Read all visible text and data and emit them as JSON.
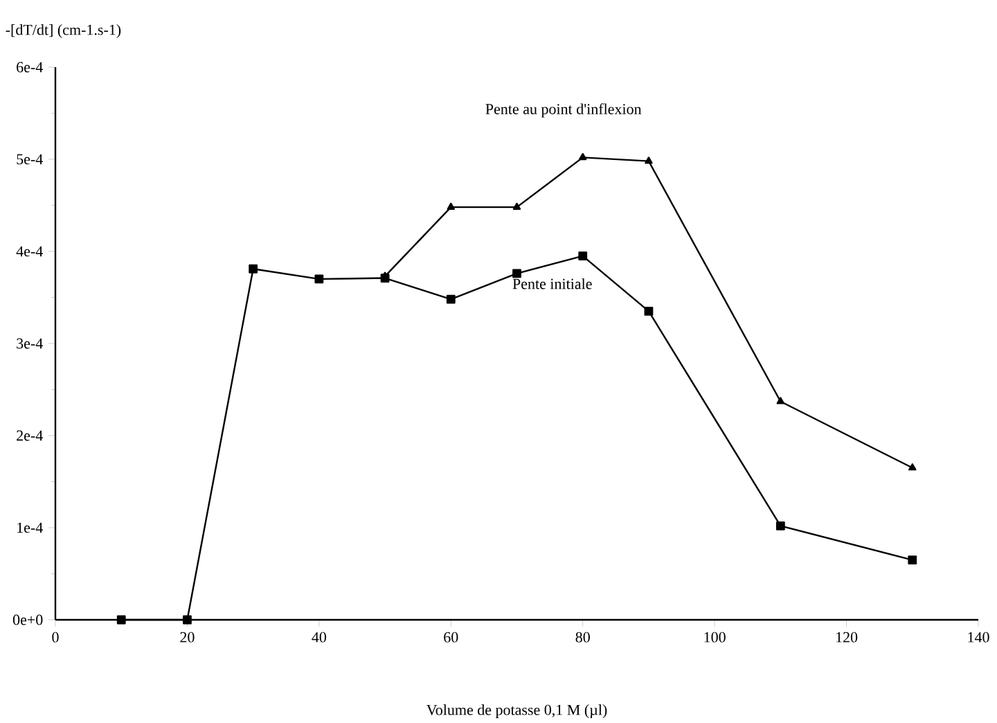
{
  "chart_data": {
    "type": "line",
    "xlabel": "Volume de potasse 0,1 M (µl)",
    "ylabel": "-[dT/dt] (cm-1.s-1)",
    "series": [
      {
        "name": "Pente au point d'inflexion",
        "color": "#000000",
        "marker": "triangle",
        "x": [
          50,
          60,
          70,
          80,
          90,
          110,
          130
        ],
        "values": [
          0.000373,
          0.000448,
          0.000448,
          0.000502,
          0.000498,
          0.000237,
          0.000165
        ]
      },
      {
        "name": "Pente initiale",
        "color": "#000000",
        "marker": "square",
        "x": [
          10,
          20,
          30,
          40,
          50,
          60,
          70,
          80,
          90,
          110,
          130
        ],
        "values": [
          0,
          0,
          0.000381,
          0.00037,
          0.000371,
          0.000348,
          0.000376,
          0.000395,
          0.000335,
          0.000102,
          6.5e-05
        ]
      }
    ],
    "xlim": [
      0,
      140
    ],
    "ylim": [
      0,
      0.0006
    ],
    "xticks": [
      0,
      20,
      40,
      60,
      80,
      100,
      120,
      140
    ],
    "yticks": [
      {
        "value": 0,
        "label": "0e+0"
      },
      {
        "value": 0.0001,
        "label": "1e-4"
      },
      {
        "value": 0.0002,
        "label": "2e-4"
      },
      {
        "value": 0.0003,
        "label": "3e-4"
      },
      {
        "value": 0.0004,
        "label": "4e-4"
      },
      {
        "value": 0.0005,
        "label": "5e-4"
      },
      {
        "value": 0.0006,
        "label": "6e-4"
      }
    ],
    "grid": false,
    "legend": false,
    "line_style": "solid"
  }
}
